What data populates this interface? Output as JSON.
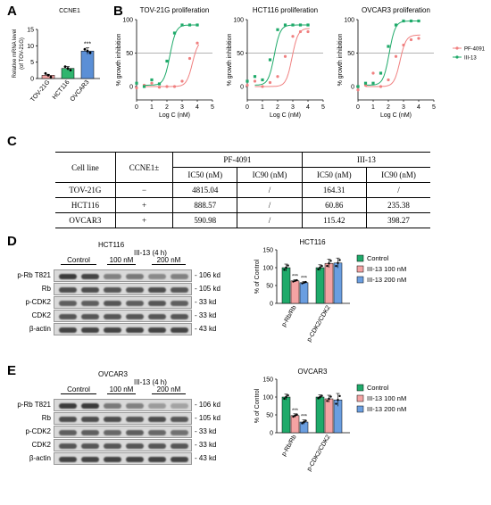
{
  "panels": {
    "A": "A",
    "B": "B",
    "C": "C",
    "D": "D",
    "E": "E"
  },
  "panelA": {
    "title": "CCNE1",
    "ylabel_line1": "Relative mRNA level",
    "ylabel_line2": "(of TOV-21G)",
    "sig": "***",
    "chart_data": {
      "type": "bar",
      "title": "CCNE1",
      "ylabel": "Relative mRNA level (of TOV-21G)",
      "categories": [
        "TOV-21G",
        "HCT116",
        "OVCAR3"
      ],
      "values": [
        1.0,
        3.1,
        8.4
      ],
      "errors": [
        0.3,
        0.6,
        1.0
      ],
      "ylim": [
        0,
        15
      ],
      "yticks": [
        "0",
        "5",
        "10",
        "15"
      ],
      "colors": [
        "#f4a3a3",
        "#2fb56e",
        "#5b8fd6"
      ]
    }
  },
  "panelB": {
    "legend": [
      {
        "name": "PF-4091",
        "color": "#f08080"
      },
      {
        "name": "III-13",
        "color": "#1faa6a"
      }
    ],
    "xlabel": "Log C (nM)",
    "ylabel": "% growth inhibition",
    "charts": [
      {
        "title": "TOV-21G proliferation",
        "pf": [
          [
            0,
            -2
          ],
          [
            0.5,
            2
          ],
          [
            1,
            5
          ],
          [
            1.5,
            -1
          ],
          [
            2,
            0
          ],
          [
            2.5,
            0
          ],
          [
            3,
            8
          ],
          [
            3.5,
            42
          ],
          [
            4,
            65
          ]
        ],
        "iii": [
          [
            0,
            5
          ],
          [
            0.5,
            0
          ],
          [
            1,
            10
          ],
          [
            1.5,
            4
          ],
          [
            2,
            38
          ],
          [
            2.5,
            80
          ],
          [
            3,
            92
          ],
          [
            3.5,
            92
          ],
          [
            4,
            92
          ]
        ],
        "pf_ic50": 3.68,
        "iii_ic50": 2.2
      },
      {
        "title": "HCT116 proliferation",
        "pf": [
          [
            0,
            2
          ],
          [
            0.5,
            8
          ],
          [
            1,
            0
          ],
          [
            1.5,
            6
          ],
          [
            2,
            15
          ],
          [
            2.5,
            45
          ],
          [
            3,
            75
          ],
          [
            3.5,
            82
          ],
          [
            4,
            82
          ]
        ],
        "iii": [
          [
            0,
            8
          ],
          [
            0.5,
            15
          ],
          [
            1,
            10
          ],
          [
            1.5,
            40
          ],
          [
            2,
            85
          ],
          [
            2.5,
            92
          ],
          [
            3,
            92
          ],
          [
            3.5,
            92
          ],
          [
            4,
            92
          ]
        ],
        "pf_ic50": 2.95,
        "iii_ic50": 1.78
      },
      {
        "title": "OVCAR3 proliferation",
        "pf": [
          [
            0,
            -5
          ],
          [
            0.5,
            2
          ],
          [
            1,
            20
          ],
          [
            1.5,
            0
          ],
          [
            2,
            10
          ],
          [
            2.5,
            45
          ],
          [
            3,
            62
          ],
          [
            3.5,
            70
          ],
          [
            4,
            72
          ]
        ],
        "iii": [
          [
            0,
            0
          ],
          [
            0.5,
            5
          ],
          [
            1,
            5
          ],
          [
            1.5,
            20
          ],
          [
            2,
            60
          ],
          [
            2.5,
            92
          ],
          [
            3,
            98
          ],
          [
            3.5,
            98
          ],
          [
            4,
            98
          ]
        ],
        "pf_ic50": 2.77,
        "iii_ic50": 2.06
      }
    ],
    "xticks": [
      "0",
      "1",
      "2",
      "3",
      "4",
      "5"
    ],
    "yticks": [
      "0",
      "50",
      "100"
    ]
  },
  "panelC": {
    "table": {
      "h_cell": "Cell line",
      "h_ccne": "CCNE1±",
      "h_pf": "PF-4091",
      "h_iii": "III-13",
      "ic50": "IC50 (nM)",
      "ic90": "IC90 (nM)",
      "rows": [
        [
          "TOV-21G",
          "−",
          "4815.04",
          "/",
          "164.31",
          "/"
        ],
        [
          "HCT116",
          "+",
          "888.57",
          "/",
          "60.86",
          "235.38"
        ],
        [
          "OVCAR3",
          "+",
          "590.98",
          "/",
          "115.42",
          "398.27"
        ]
      ]
    }
  },
  "panelD": {
    "blot_title": "HCT116",
    "treat": "III-13 (4 h)",
    "lanes": [
      "Control",
      "100 nM",
      "200 nM"
    ],
    "rows": [
      "p-Rb T821",
      "Rb",
      "p-CDK2",
      "CDK2",
      "β-actin"
    ],
    "kd": [
      "106 kd",
      "105 kd",
      "33 kd",
      "33 kd",
      "43 kd"
    ],
    "chart_title": "HCT116",
    "ylabel": "% of Control",
    "legend": [
      "Control",
      "III-13 100 nM",
      "III-13 200 nM"
    ],
    "chart_data": {
      "type": "bar",
      "categories": [
        "p-Rb/Rb",
        "p-CDK2/CDK2"
      ],
      "series": [
        {
          "name": "Control",
          "values": [
            100,
            100
          ],
          "errors": [
            10,
            8
          ]
        },
        {
          "name": "III-13 100 nM",
          "values": [
            63,
            112
          ],
          "errors": [
            3,
            12
          ]
        },
        {
          "name": "III-13 200 nM",
          "values": [
            58,
            113
          ],
          "errors": [
            3,
            14
          ]
        }
      ],
      "sig": [
        [
          "",
          "***",
          "***"
        ],
        [
          "",
          "",
          ""
        ]
      ],
      "ylim": [
        0,
        150
      ],
      "yticks": [
        "0",
        "50",
        "100",
        "150"
      ],
      "colors": [
        "#1faa6a",
        "#f4a3a3",
        "#6a9ee0"
      ]
    }
  },
  "panelE": {
    "blot_title": "OVCAR3",
    "treat": "III-13 (4 h)",
    "lanes": [
      "Control",
      "100 nM",
      "200 nM"
    ],
    "rows": [
      "p-Rb T821",
      "Rb",
      "p-CDK2",
      "CDK2",
      "β-actin"
    ],
    "kd": [
      "106 kd",
      "105 kd",
      "33 kd",
      "33 kd",
      "43 kd"
    ],
    "chart_title": "OVCAR3",
    "ylabel": "% of Control",
    "legend": [
      "Control",
      "III-13 100 nM",
      "III-13 200 nM"
    ],
    "chart_data": {
      "type": "bar",
      "categories": [
        "p-Rb/Rb",
        "p-CDK2/CDK2"
      ],
      "series": [
        {
          "name": "Control",
          "values": [
            100,
            100
          ],
          "errors": [
            8,
            6
          ]
        },
        {
          "name": "III-13 100 nM",
          "values": [
            48,
            95
          ],
          "errors": [
            5,
            10
          ]
        },
        {
          "name": "III-13 200 nM",
          "values": [
            30,
            92
          ],
          "errors": [
            6,
            18
          ]
        }
      ],
      "sig": [
        [
          "",
          "***",
          "***"
        ],
        [
          "",
          "",
          ""
        ]
      ],
      "ylim": [
        0,
        150
      ],
      "yticks": [
        "0",
        "50",
        "100",
        "150"
      ],
      "colors": [
        "#1faa6a",
        "#f4a3a3",
        "#6a9ee0"
      ]
    }
  }
}
